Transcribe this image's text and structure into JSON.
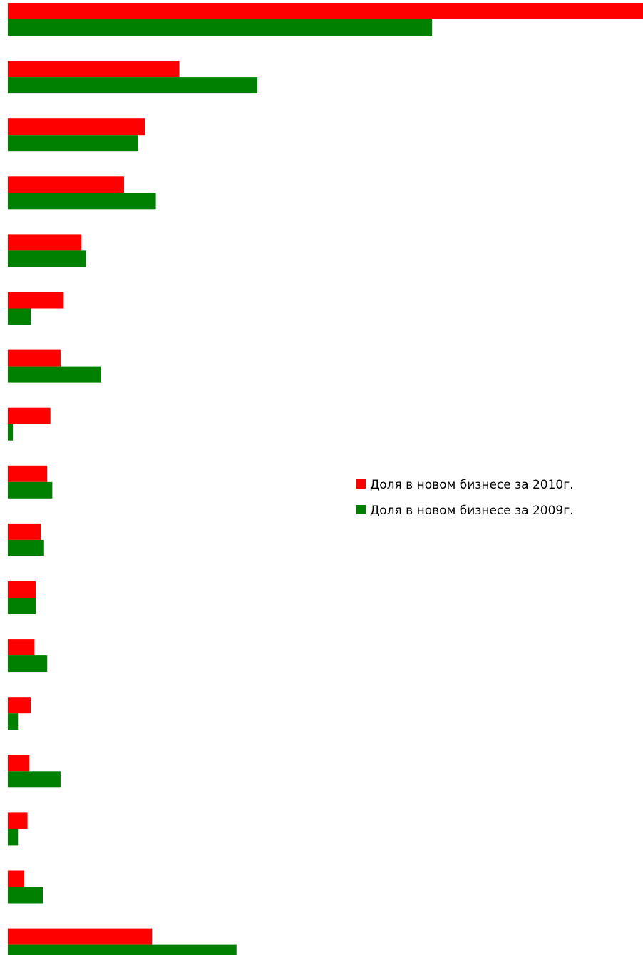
{
  "chart_data": {
    "type": "bar",
    "orientation": "horizontal",
    "categories": [
      "",
      "",
      "",
      "",
      "",
      "",
      "",
      "",
      "",
      "",
      "",
      "",
      "",
      "",
      "",
      "",
      ""
    ],
    "series": [
      {
        "name": "Доля в новом бизнесе за 2010г.",
        "color": "#ff0000",
        "values": [
          100,
          27,
          21.6,
          18.3,
          11.6,
          8.8,
          8.3,
          6.7,
          6.2,
          5.2,
          4.4,
          4.2,
          3.6,
          3.4,
          3.1,
          2.6,
          22.7
        ]
      },
      {
        "name": "Доля в новом бизнесе за 2009г.",
        "color": "#008000",
        "values": [
          66.8,
          39.3,
          20.5,
          23.3,
          12.3,
          3.6,
          14.7,
          0.8,
          7.0,
          5.7,
          4.4,
          6.2,
          1.6,
          8.3,
          1.6,
          5.5,
          36.0
        ]
      }
    ],
    "xlim": [
      0,
      100
    ],
    "grid": false,
    "legend_position": "right-middle",
    "title": "",
    "xlabel": "",
    "ylabel": ""
  }
}
